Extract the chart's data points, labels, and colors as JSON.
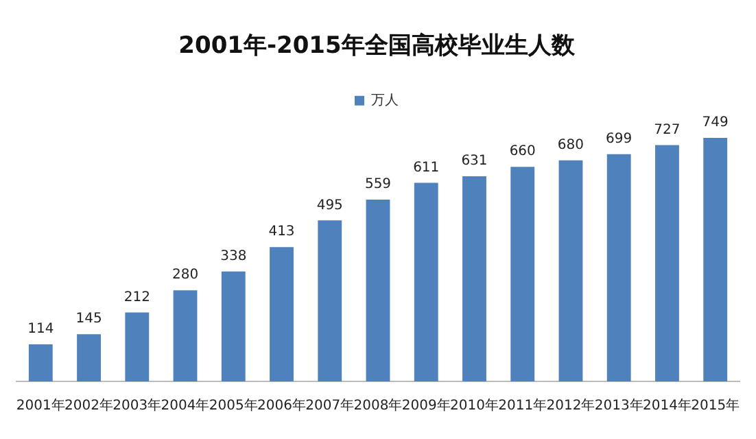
{
  "chart_data": {
    "type": "bar",
    "title": "2001年-2015年全国高校毕业生人数",
    "categories": [
      "2001年",
      "2002年",
      "2003年",
      "2004年",
      "2005年",
      "2006年",
      "2007年",
      "2008年",
      "2009年",
      "2010年",
      "2011年",
      "2012年",
      "2013年",
      "2014年",
      "2015年"
    ],
    "series": [
      {
        "name": "万人",
        "color": "#4f81bd",
        "values": [
          114,
          145,
          212,
          280,
          338,
          413,
          495,
          559,
          611,
          631,
          660,
          680,
          699,
          727,
          749
        ]
      }
    ],
    "data_labels": true,
    "legend": "top",
    "grid": false,
    "tick_labels": "x"
  }
}
